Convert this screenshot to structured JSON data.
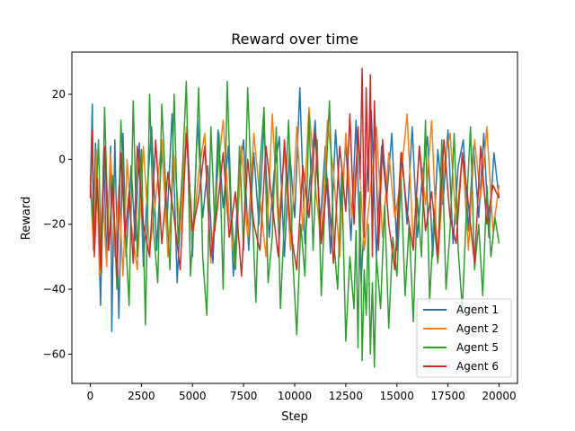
{
  "chart_data": {
    "type": "line",
    "title": "Reward over time",
    "xlabel": "Step",
    "ylabel": "Reward",
    "xlim": [
      -900,
      20900
    ],
    "ylim": [
      -69,
      33
    ],
    "xticks": [
      0,
      2500,
      5000,
      7500,
      10000,
      12500,
      15000,
      17500,
      20000
    ],
    "xtick_labels": [
      "0",
      "2500",
      "5000",
      "7500",
      "10000",
      "12500",
      "15000",
      "17500",
      "20000"
    ],
    "yticks": [
      -60,
      -40,
      -20,
      0,
      20
    ],
    "ytick_labels": [
      "−60",
      "−40",
      "−20",
      "0",
      "20"
    ],
    "grid": false,
    "legend_position": "lower-right",
    "series": [
      {
        "name": "Agent 1",
        "color": "#1f77b4",
        "x": [
          0,
          100,
          150,
          250,
          400,
          500,
          650,
          800,
          1000,
          1050,
          1200,
          1400,
          1600,
          1750,
          2000,
          2200,
          2400,
          2600,
          2800,
          3000,
          3250,
          3500,
          3750,
          4000,
          4250,
          4500,
          4750,
          5000,
          5250,
          5500,
          5750,
          6000,
          6250,
          6500,
          6750,
          7000,
          7250,
          7500,
          7750,
          8000,
          8250,
          8500,
          8750,
          9000,
          9250,
          9500,
          9750,
          10000,
          10250,
          10500,
          10750,
          11000,
          11250,
          11500,
          11750,
          12000,
          12250,
          12500,
          12750,
          13000,
          13250,
          13500,
          13750,
          14000,
          14250,
          14500,
          14750,
          15000,
          15250,
          15500,
          15750,
          16000,
          16250,
          16500,
          16750,
          17000,
          17250,
          17500,
          17750,
          18000,
          18250,
          18500,
          18750,
          19000,
          19250,
          19500,
          19750,
          20000
        ],
        "y": [
          -10,
          17,
          -25,
          5,
          -20,
          -45,
          2,
          -30,
          4,
          -53,
          6,
          -49,
          8,
          -30,
          -2,
          -25,
          5,
          -33,
          -8,
          10,
          -28,
          3,
          -20,
          14,
          -38,
          -5,
          8,
          -30,
          12,
          -18,
          -2,
          -32,
          9,
          -15,
          4,
          -36,
          -8,
          6,
          -28,
          2,
          -20,
          11,
          -24,
          -4,
          7,
          -30,
          3,
          -18,
          22,
          -26,
          -6,
          12,
          -20,
          4,
          -29,
          9,
          -16,
          5,
          -25,
          12,
          -38,
          -8,
          15,
          -30,
          4,
          -12,
          8,
          -28,
          2,
          -20,
          10,
          -24,
          -5,
          7,
          -30,
          3,
          -14,
          9,
          -26,
          -2,
          6,
          -22,
          4,
          -18,
          8,
          -24,
          2,
          -12
        ]
      },
      {
        "name": "Agent 2",
        "color": "#ff7f0e",
        "x": [
          0,
          150,
          300,
          450,
          600,
          800,
          1000,
          1200,
          1400,
          1600,
          1800,
          2000,
          2300,
          2600,
          2900,
          3200,
          3500,
          3800,
          4100,
          4400,
          4700,
          5000,
          5300,
          5600,
          5900,
          6200,
          6500,
          6800,
          7100,
          7400,
          7700,
          8000,
          8300,
          8600,
          8900,
          9200,
          9500,
          9800,
          10100,
          10400,
          10700,
          11000,
          11300,
          11600,
          11900,
          12200,
          12500,
          12800,
          13100,
          13400,
          13700,
          14000,
          14300,
          14600,
          14900,
          15200,
          15500,
          15800,
          16100,
          16400,
          16700,
          17000,
          17300,
          17600,
          17900,
          18200,
          18500,
          18800,
          19100,
          19400,
          19700,
          20000
        ],
        "y": [
          -5,
          -28,
          3,
          -36,
          -10,
          -33,
          2,
          -30,
          -8,
          -36,
          0,
          -20,
          -34,
          4,
          -28,
          -12,
          6,
          -30,
          1,
          -22,
          10,
          -26,
          -4,
          8,
          -32,
          -6,
          12,
          -18,
          -34,
          4,
          -24,
          8,
          -12,
          -30,
          14,
          -20,
          2,
          -28,
          10,
          -22,
          16,
          -8,
          -26,
          12,
          -4,
          -30,
          8,
          -18,
          6,
          -28,
          -10,
          10,
          -24,
          2,
          -18,
          -6,
          14,
          -26,
          4,
          -14,
          12,
          -32,
          -2,
          8,
          -20,
          2,
          -28,
          6,
          -12,
          10,
          -22,
          -8
        ]
      },
      {
        "name": "Agent 5",
        "color": "#2ca02c",
        "x": [
          0,
          200,
          400,
          550,
          700,
          900,
          1100,
          1300,
          1500,
          1700,
          1900,
          2100,
          2300,
          2500,
          2700,
          2900,
          3100,
          3300,
          3500,
          3700,
          3900,
          4100,
          4300,
          4500,
          4700,
          4900,
          5100,
          5300,
          5500,
          5700,
          5900,
          6100,
          6300,
          6500,
          6700,
          6900,
          7100,
          7300,
          7500,
          7700,
          7900,
          8100,
          8300,
          8500,
          8700,
          8900,
          9100,
          9300,
          9500,
          9700,
          9900,
          10100,
          10300,
          10500,
          10700,
          10900,
          11100,
          11300,
          11500,
          11700,
          11900,
          12100,
          12300,
          12500,
          12700,
          12900,
          13000,
          13100,
          13200,
          13300,
          13400,
          13500,
          13600,
          13700,
          13800,
          13900,
          14000,
          14200,
          14400,
          14600,
          14800,
          15000,
          15200,
          15400,
          15600,
          15800,
          16000,
          16200,
          16400,
          16600,
          16800,
          17000,
          17200,
          17400,
          17600,
          17800,
          18000,
          18200,
          18400,
          18600,
          18800,
          19000,
          19200,
          19400,
          19600,
          19800,
          20000
        ],
        "y": [
          -8,
          -25,
          6,
          -35,
          16,
          -28,
          -5,
          -40,
          12,
          -20,
          -45,
          18,
          -30,
          3,
          -51,
          20,
          -22,
          -38,
          17,
          -10,
          -34,
          20,
          -26,
          -4,
          24,
          -36,
          -14,
          22,
          -30,
          -48,
          10,
          -22,
          8,
          -40,
          24,
          -16,
          -34,
          4,
          -28,
          22,
          -12,
          -44,
          -2,
          16,
          -38,
          -24,
          10,
          -46,
          -18,
          12,
          -30,
          -54,
          -20,
          -36,
          14,
          -28,
          6,
          -42,
          -10,
          18,
          -24,
          -40,
          -4,
          -56,
          -30,
          -46,
          -22,
          -58,
          -10,
          -62,
          -34,
          -48,
          -20,
          -60,
          -38,
          -64,
          -30,
          -46,
          -14,
          -52,
          -24,
          -36,
          -6,
          -42,
          -20,
          -50,
          -12,
          -30,
          12,
          -44,
          -18,
          -32,
          6,
          -40,
          -22,
          8,
          -28,
          -46,
          -16,
          10,
          -34,
          -20,
          -42,
          -8,
          -30,
          -18,
          -26
        ]
      },
      {
        "name": "Agent 6",
        "color": "#d62728",
        "x": [
          0,
          100,
          200,
          350,
          500,
          700,
          900,
          1100,
          1300,
          1500,
          1700,
          1900,
          2100,
          2300,
          2600,
          2900,
          3200,
          3500,
          3800,
          4100,
          4400,
          4700,
          5000,
          5300,
          5600,
          5900,
          6200,
          6500,
          6800,
          7100,
          7400,
          7700,
          8000,
          8300,
          8600,
          8900,
          9200,
          9500,
          9800,
          10100,
          10400,
          10700,
          11000,
          11300,
          11600,
          11900,
          12200,
          12500,
          12700,
          12900,
          13100,
          13200,
          13300,
          13400,
          13500,
          13600,
          13700,
          13800,
          13900,
          14000,
          14100,
          14300,
          14600,
          14900,
          15200,
          15500,
          15800,
          16100,
          16400,
          16700,
          17000,
          17300,
          17600,
          17900,
          18200,
          18500,
          18800,
          19100,
          19400,
          19700,
          20000
        ],
        "y": [
          -12,
          9,
          -30,
          -6,
          -34,
          4,
          -28,
          -8,
          -36,
          2,
          -24,
          -10,
          -32,
          4,
          -20,
          -30,
          6,
          -26,
          -4,
          -18,
          -34,
          8,
          -22,
          -12,
          4,
          -30,
          -16,
          2,
          -24,
          -10,
          -36,
          0,
          -20,
          -28,
          4,
          -14,
          -30,
          6,
          -22,
          -34,
          -2,
          -18,
          8,
          -26,
          -6,
          -32,
          4,
          -16,
          14,
          -20,
          10,
          -6,
          28,
          -24,
          22,
          -10,
          26,
          -30,
          18,
          -4,
          -28,
          6,
          -20,
          -34,
          2,
          -16,
          -28,
          4,
          -22,
          -10,
          -30,
          6,
          -18,
          -26,
          2,
          -14,
          -32,
          4,
          -20,
          -8,
          -12
        ]
      }
    ]
  }
}
